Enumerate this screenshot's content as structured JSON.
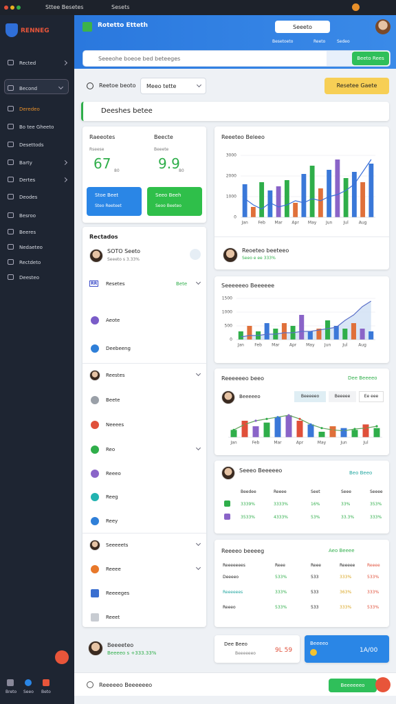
{
  "topbar": {
    "tabs": [
      "Sttee Besetes",
      "Sesets"
    ]
  },
  "sidebar": {
    "brand": "RENNEG",
    "items": [
      "Rected",
      "Becond",
      "Deredeo",
      "Bo tee Gheeto",
      "Desettods",
      "Barty",
      "Dertes",
      "Deodes",
      "Besroo",
      "Beeres",
      "Nedaeteo",
      "Rectdeto",
      "Deesteo"
    ],
    "footer": [
      "Breto",
      "Seeo",
      "Beto"
    ]
  },
  "header": {
    "title": "Rotetto Etteth",
    "user": "Seeeto",
    "links": [
      "Besetoeto",
      "Reeto",
      "Sedeo"
    ],
    "search": "Seeeohe boeoe bed beteeges",
    "search_button": "Beeto Rees"
  },
  "toolbar": {
    "label": "Reetoe beoto",
    "select": "Meeo tette",
    "action": "Resetee Gaete"
  },
  "section_title": "Deeshes betee",
  "kpis": [
    {
      "label": "Raeeotes",
      "sub": "Rseese",
      "value": "67",
      "unit": "80"
    },
    {
      "label": "Beecte",
      "sub": "Beeete",
      "value": "9.9",
      "unit": "80"
    }
  ],
  "kpi_buttons": [
    {
      "label": "Stoe Beet",
      "sub": "Steo Reeteet"
    },
    {
      "label": "Seeo Beeh",
      "sub": "Seoo Beeteo"
    }
  ],
  "list": {
    "title": "Rectados",
    "person": {
      "name": "SOTO Seeto",
      "sub": "Seeeto s 3.33%"
    },
    "items": [
      {
        "label": "Resetes",
        "icon": "RR",
        "badge": "Bete",
        "chevron": true
      },
      {
        "label": "Aeote",
        "color": "#7a5cc8"
      },
      {
        "label": "Deebeeng",
        "color": "#2f7fd8"
      },
      {
        "label": "Reestes",
        "chevron": true
      },
      {
        "label": "Beete",
        "color": "#9aa0a8"
      },
      {
        "label": "Neeees",
        "color": "#e0503a"
      },
      {
        "label": "Reo",
        "color": "#2fae4a",
        "chevron": true
      },
      {
        "label": "Reeeo",
        "color": "#8a64c8"
      },
      {
        "label": "Reeg",
        "color": "#22b3b0"
      },
      {
        "label": "Reey",
        "color": "#2f7fd8"
      },
      {
        "label": "Seeeeets",
        "chevron": true
      },
      {
        "label": "Reeee",
        "color": "#e8782a",
        "chevron": true
      },
      {
        "label": "Reeeeges",
        "color": "#3a6fd0"
      },
      {
        "label": "Reeet",
        "color": "#c8ccd2"
      }
    ]
  },
  "chart_data": [
    {
      "type": "bar",
      "title": "Reeeteo Beleeo",
      "categories": [
        "Jan",
        null,
        "Feb",
        null,
        "Mar",
        null,
        "Apr",
        null,
        "May",
        null,
        "Jun",
        null,
        "Jul",
        null,
        "Aug",
        null
      ],
      "values": [
        1600,
        500,
        1700,
        1300,
        1500,
        1800,
        700,
        2100,
        2500,
        1400,
        2300,
        2800,
        1900,
        2200,
        1700,
        2600
      ],
      "colors": [
        "#3a78d8",
        "#e0703a",
        "#2fae4a",
        "#3a78d8",
        "#8a64c8",
        "#2fae4a",
        "#e0703a",
        "#3a78d8",
        "#2fae4a",
        "#e0703a",
        "#3a78d8",
        "#8a64c8",
        "#2fae4a",
        "#3a78d8",
        "#e0703a",
        "#3a78d8"
      ],
      "line": [
        900,
        600,
        400,
        700,
        500,
        600,
        800,
        700,
        900,
        800,
        1000,
        1100,
        1300,
        1600,
        2200,
        2800
      ],
      "line_color": "#3b6fd8",
      "ylim": [
        0,
        3000
      ],
      "yticks": [
        0,
        1000,
        2000,
        3000
      ],
      "grid": true
    },
    {
      "type": "bar",
      "title": "Seeeeeeo Beeeeee",
      "categories": [
        "Jan",
        null,
        "Feb",
        null,
        "Mar",
        null,
        "Apr",
        null,
        "May",
        null,
        "Jun",
        null,
        "Jul",
        null,
        "Aug",
        null
      ],
      "values": [
        300,
        500,
        300,
        600,
        400,
        600,
        500,
        900,
        300,
        400,
        700,
        500,
        400,
        600,
        400,
        300
      ],
      "colors": [
        "#2fae4a",
        "#e0703a",
        "#2fae4a",
        "#3a78d8",
        "#2fae4a",
        "#e0703a",
        "#2fae4a",
        "#8a64c8",
        "#3a78d8",
        "#e0703a",
        "#2fae4a",
        "#3a78d8",
        "#2fae4a",
        "#e0703a",
        "#8a64c8",
        "#3a78d8"
      ],
      "line": [
        100,
        150,
        150,
        200,
        200,
        250,
        250,
        300,
        300,
        350,
        400,
        450,
        700,
        900,
        1200,
        1400
      ],
      "line_color": "#5a6fc8",
      "area": true,
      "ylim": [
        0,
        1500
      ],
      "yticks": [
        0,
        500,
        1000,
        1500
      ],
      "grid": true
    },
    {
      "type": "bar",
      "title": "Reeeeeeo beeo",
      "categories": [
        "Jan",
        null,
        "Feb",
        null,
        "Mar",
        null,
        "Apr",
        null,
        "May",
        null,
        "Jun",
        null,
        "Jul",
        null
      ],
      "values": [
        400,
        900,
        600,
        800,
        1100,
        1200,
        900,
        700,
        300,
        600,
        500,
        400,
        700,
        500
      ],
      "colors": [
        "#2fae4a",
        "#e0503a",
        "#8a64c8",
        "#2fae4a",
        "#3a78d8",
        "#8a64c8",
        "#e0503a",
        "#3a78d8",
        "#2fae4a",
        "#e0703a",
        "#3a78d8",
        "#2fae4a",
        "#e0503a",
        "#2fae4a"
      ],
      "line": [
        400,
        700,
        900,
        1000,
        1100,
        1200,
        1000,
        700,
        500,
        400,
        350,
        450,
        500,
        600
      ],
      "line_color": "#5fa35a",
      "dots": true,
      "ylim": [
        0,
        1500
      ],
      "grid": false
    }
  ],
  "chart_person": {
    "name": "Reoeteo beeteeo",
    "sub": "Seeo e ee 333%"
  },
  "summary": {
    "link": "Dee Beeeeo",
    "person": "Beeeeeo",
    "tabs": [
      "Beeeeeo",
      "Beeeee",
      "Ee eee"
    ]
  },
  "table1": {
    "person": "Seeeo Beeeeeo",
    "link": "Beo Beeo",
    "header": [
      "Beedee",
      "Reeee",
      "Seet",
      "Seee",
      "Seeee"
    ],
    "rows": [
      [
        "3339%",
        "3333%",
        "16%",
        "33%",
        "353%"
      ],
      [
        "3533%",
        "4333%",
        "53%",
        "33.3%",
        "333%"
      ]
    ]
  },
  "table2": {
    "title": "Reeeeo beeeeg",
    "link": "Aeo Beeee",
    "header": [
      "Reeeeeees",
      "Reee",
      "Reee",
      "Reeeee",
      "Reeee"
    ],
    "rows": [
      [
        "Deeeeo",
        "533%",
        "533",
        "333%",
        "533%"
      ],
      [
        "Reeeeees",
        "333%",
        "533",
        "363%",
        "333%"
      ],
      [
        "Reeeo",
        "533%",
        "533",
        "333%",
        "533%"
      ]
    ]
  },
  "footer": {
    "person": {
      "name": "Beeeeteo",
      "sub": "Beeeeo s +333.33%"
    },
    "card1": {
      "title": "Dee Beeo",
      "sub": "Beeeeeeo",
      "value": "9L 59"
    },
    "card2": {
      "title": "Beeeeo",
      "value": "1A/00"
    }
  },
  "bottombar": {
    "text": "Reeeeeo Beeeeeeo",
    "button": "Beeeeeeo"
  }
}
